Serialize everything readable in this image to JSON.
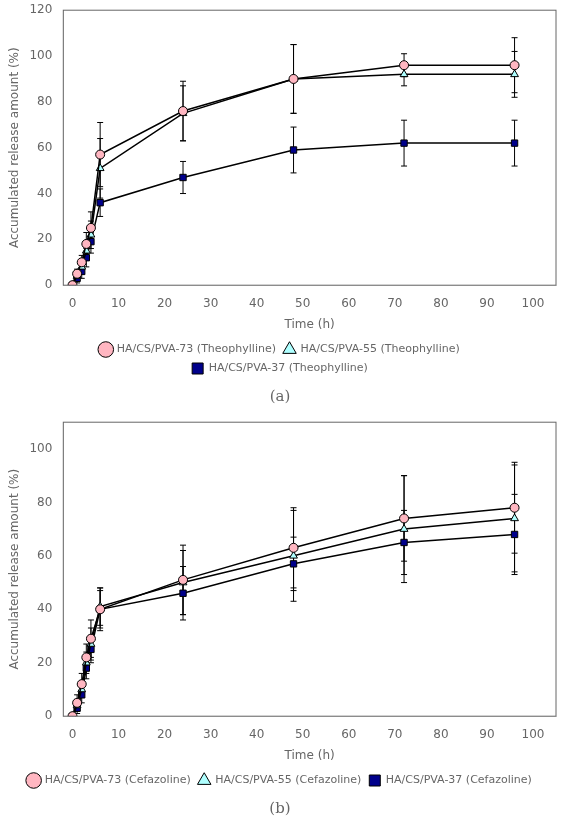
{
  "chart_data": [
    {
      "type": "line",
      "title": "(a)",
      "xlabel": "Time (h)",
      "ylabel": "Accumulated release amount (%)",
      "x": [
        0,
        1,
        2,
        3,
        4,
        6,
        24,
        48,
        72,
        96
      ],
      "series": [
        {
          "name": "HA/CS/PVA-73 (Theophylline)",
          "color": "#FFB6C1",
          "marker": "circle",
          "values": [
            0,
            5,
            10,
            18,
            25,
            57,
            76,
            90,
            96,
            96
          ],
          "yerr": [
            0,
            2,
            3,
            5,
            7,
            14,
            13,
            15,
            5,
            12
          ]
        },
        {
          "name": "HA/CS/PVA-55 (Theophylline)",
          "color": "#AFFFFF",
          "marker": "triangle",
          "values": [
            0,
            4,
            8,
            15,
            22,
            51,
            75,
            90,
            92,
            92
          ],
          "yerr": [
            0,
            2,
            3,
            4,
            6,
            13,
            12,
            15,
            5,
            10
          ]
        },
        {
          "name": "HA/CS/PVA-37 (Theophylline)",
          "color": "#00008B",
          "marker": "square",
          "values": [
            0,
            3,
            6,
            12,
            19,
            36,
            47,
            59,
            62,
            62
          ],
          "yerr": [
            0,
            2,
            3,
            4,
            5,
            6,
            7,
            10,
            10,
            10
          ]
        }
      ],
      "xlim": [
        -2,
        105
      ],
      "xticks": [
        0,
        10,
        20,
        30,
        40,
        50,
        60,
        70,
        80,
        90,
        100
      ],
      "ylim": [
        0,
        120
      ],
      "yticks": [
        0,
        20,
        40,
        60,
        80,
        100,
        120
      ],
      "grid": false,
      "legend": "bottom"
    },
    {
      "type": "line",
      "title": "(b)",
      "xlabel": "Time (h)",
      "ylabel": "Accumulated release amount (%)",
      "x": [
        0,
        1,
        2,
        3,
        4,
        6,
        24,
        48,
        72,
        96
      ],
      "series": [
        {
          "name": "HA/CS/PVA-73 (Cefazoline)",
          "color": "#FFB6C1",
          "marker": "circle",
          "values": [
            0,
            5,
            12,
            22,
            29,
            40,
            51,
            63,
            74,
            78
          ],
          "yerr": [
            0,
            3,
            4,
            5,
            7,
            8,
            13,
            15,
            16,
            17
          ]
        },
        {
          "name": "HA/CS/PVA-55 (Cefazoline)",
          "color": "#AFFFFF",
          "marker": "triangle",
          "values": [
            0,
            4,
            10,
            20,
            27,
            41,
            50,
            60,
            70,
            74
          ],
          "yerr": [
            0,
            2,
            3,
            4,
            6,
            7,
            12,
            17,
            20,
            20
          ]
        },
        {
          "name": "HA/CS/PVA-37 (Cefazoline)",
          "color": "#00008B",
          "marker": "square",
          "values": [
            0,
            3,
            8,
            18,
            25,
            40,
            46,
            57,
            65,
            68
          ],
          "yerr": [
            0,
            2,
            3,
            4,
            5,
            7,
            10,
            10,
            12,
            15
          ]
        }
      ],
      "xlim": [
        -2,
        105
      ],
      "xticks": [
        0,
        10,
        20,
        30,
        40,
        50,
        60,
        70,
        80,
        90,
        100
      ],
      "ylim": [
        0,
        110
      ],
      "yticks": [
        0,
        20,
        40,
        60,
        80,
        100
      ],
      "grid": false,
      "legend": "bottom"
    }
  ]
}
